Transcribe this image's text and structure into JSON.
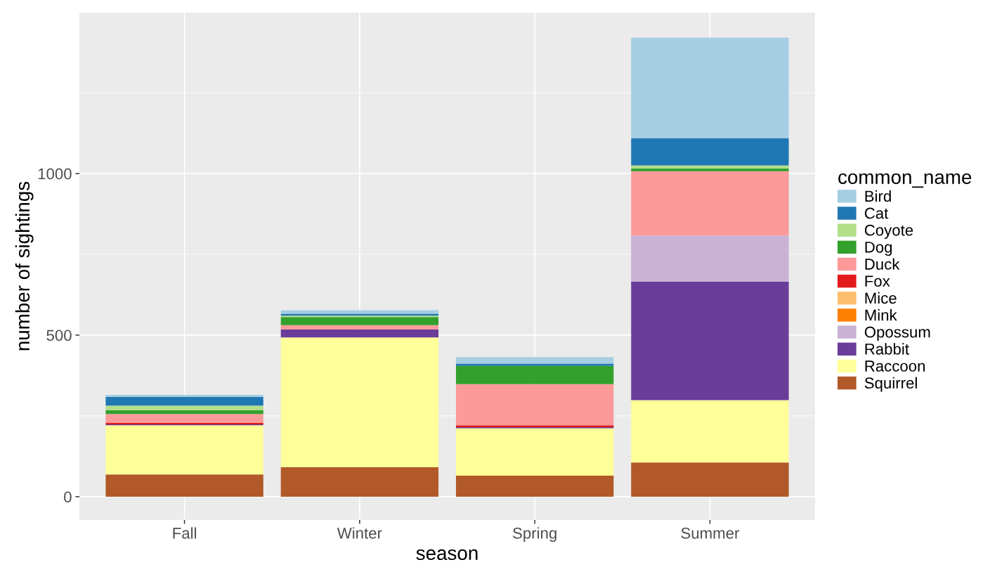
{
  "chart_data": {
    "type": "bar",
    "stacked": true,
    "xlabel": "season",
    "ylabel": "number of sightings",
    "legend_title": "common_name",
    "categories": [
      "Fall",
      "Winter",
      "Spring",
      "Summer"
    ],
    "series": [
      {
        "name": "Squirrel",
        "color": "#b15928",
        "values": [
          69,
          91,
          65,
          106
        ]
      },
      {
        "name": "Raccoon",
        "color": "#ffff99",
        "values": [
          152,
          402,
          147,
          193
        ]
      },
      {
        "name": "Rabbit",
        "color": "#6a3d9a",
        "values": [
          3,
          25,
          3,
          366
        ]
      },
      {
        "name": "Opossum",
        "color": "#cab2d6",
        "values": [
          0,
          0,
          0,
          143
        ]
      },
      {
        "name": "Mink",
        "color": "#ff7f00",
        "values": [
          0,
          0,
          0,
          0
        ]
      },
      {
        "name": "Mice",
        "color": "#fdbf6f",
        "values": [
          0,
          0,
          0,
          0
        ]
      },
      {
        "name": "Fox",
        "color": "#e31a1c",
        "values": [
          4,
          0,
          6,
          0
        ]
      },
      {
        "name": "Duck",
        "color": "#fb9a99",
        "values": [
          28,
          13,
          127,
          199
        ]
      },
      {
        "name": "Dog",
        "color": "#33a02c",
        "values": [
          12,
          25,
          57,
          9
        ]
      },
      {
        "name": "Coyote",
        "color": "#b2df8a",
        "values": [
          14,
          4,
          0,
          9
        ]
      },
      {
        "name": "Cat",
        "color": "#1f78b4",
        "values": [
          27,
          6,
          7,
          85
        ]
      },
      {
        "name": "Bird",
        "color": "#a6cee3",
        "values": [
          6,
          11,
          20,
          311
        ]
      }
    ],
    "ylim": [
      -72,
      1498
    ],
    "yticks": [
      0,
      500,
      1000
    ],
    "grid": true,
    "legend": "right"
  }
}
